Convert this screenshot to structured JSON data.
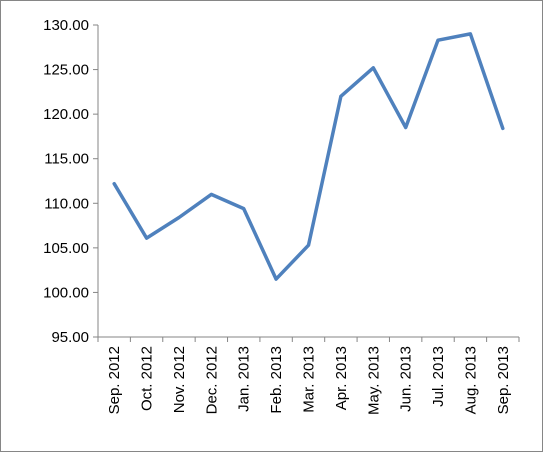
{
  "chart_data": {
    "type": "line",
    "title": "",
    "xlabel": "",
    "ylabel": "",
    "categories": [
      "Sep. 2012",
      "Oct. 2012",
      "Nov. 2012",
      "Dec. 2012",
      "Jan. 2013",
      "Feb. 2013",
      "Mar. 2013",
      "Apr. 2013",
      "May. 2013",
      "Jun. 2013",
      "Jul. 2013",
      "Aug. 2013",
      "Sep. 2013"
    ],
    "series": [
      {
        "color": "#4f81bd",
        "values": [
          112.2,
          106.1,
          108.4,
          111.0,
          109.4,
          101.5,
          105.3,
          122.0,
          125.2,
          118.5,
          128.3,
          129.0,
          118.4
        ]
      }
    ],
    "ylim": [
      95,
      130
    ],
    "yticks": [
      "95.00",
      "100.00",
      "105.00",
      "110.00",
      "115.00",
      "120.00",
      "125.00",
      "130.00"
    ],
    "grid": false,
    "legend": "none"
  }
}
